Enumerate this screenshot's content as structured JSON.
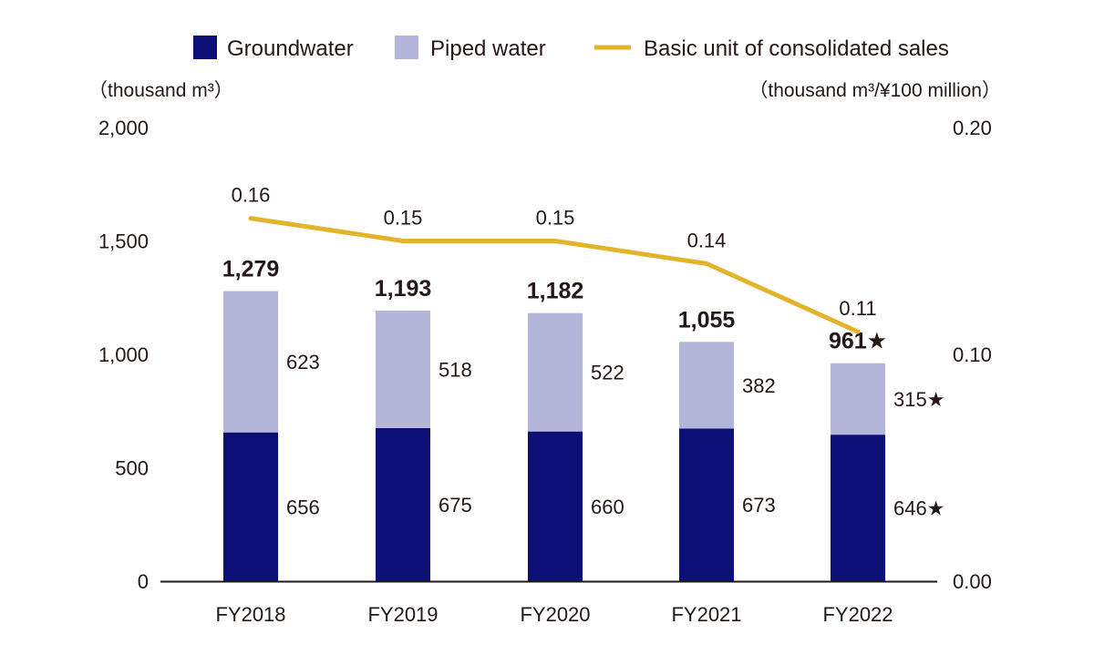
{
  "chart_data": {
    "type": "bar",
    "stacked": true,
    "categories": [
      "FY2018",
      "FY2019",
      "FY2020",
      "FY2021",
      "FY2022"
    ],
    "series": [
      {
        "name": "Groundwater",
        "color": "#0c0f75",
        "values": [
          656,
          675,
          660,
          673,
          646
        ],
        "labels": [
          "656",
          "675",
          "660",
          "673",
          "646★"
        ]
      },
      {
        "name": "Piped water",
        "color": "#b4b6d9",
        "values": [
          623,
          518,
          522,
          382,
          315
        ],
        "labels": [
          "623",
          "518",
          "522",
          "382",
          "315★"
        ]
      }
    ],
    "totals": [
      1279,
      1193,
      1182,
      1055,
      961
    ],
    "total_labels": [
      "1,279",
      "1,193",
      "1,182",
      "1,055",
      "961★"
    ],
    "line": {
      "name": "Basic unit of consolidated sales",
      "color": "#e3b32a",
      "axis": "right",
      "values": [
        0.16,
        0.15,
        0.15,
        0.14,
        0.11
      ],
      "labels": [
        "0.16",
        "0.15",
        "0.15",
        "0.14",
        "0.11"
      ]
    },
    "y_left": {
      "unit": "（thousand m³）",
      "range": [
        0,
        2000
      ],
      "ticks": [
        0,
        500,
        1000,
        1500,
        2000
      ],
      "tick_labels": [
        "0",
        "500",
        "1,000",
        "1,500",
        "2,000"
      ]
    },
    "y_right": {
      "unit": "（thousand m³/¥100 million）",
      "range": [
        0,
        0.2
      ],
      "ticks": [
        0,
        0.1,
        0.2
      ],
      "tick_labels": [
        "0.00",
        "0.10",
        "0.20"
      ]
    },
    "legend": [
      "Groundwater",
      "Piped water",
      "Basic unit of consolidated sales"
    ],
    "legend_position": "top-right"
  }
}
